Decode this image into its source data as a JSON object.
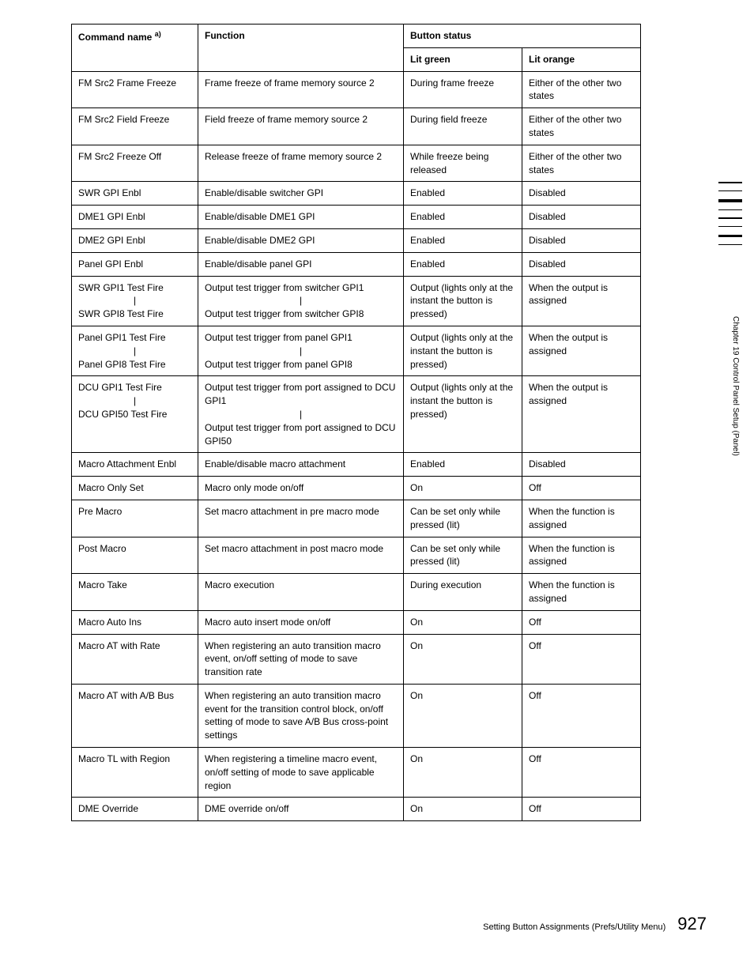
{
  "table": {
    "headers": {
      "command": "Command name",
      "command_sup": "a)",
      "function": "Function",
      "button_status": "Button status",
      "lit_green": "Lit green",
      "lit_orange": "Lit orange"
    },
    "rows": [
      {
        "cmd": "FM Src2 Frame Freeze",
        "func": "Frame freeze of frame memory source 2",
        "green": "During frame freeze",
        "orange": "Either of the other two states"
      },
      {
        "cmd": "FM Src2 Field Freeze",
        "func": "Field freeze of frame memory source 2",
        "green": "During field freeze",
        "orange": "Either of the other two states"
      },
      {
        "cmd": "FM Src2 Freeze Off",
        "func": "Release freeze of frame memory source 2",
        "green": "While freeze being released",
        "orange": "Either of the other two states"
      },
      {
        "cmd": "SWR GPI Enbl",
        "func": "Enable/disable switcher GPI",
        "green": "Enabled",
        "orange": "Disabled"
      },
      {
        "cmd": "DME1 GPI Enbl",
        "func": "Enable/disable DME1 GPI",
        "green": "Enabled",
        "orange": "Disabled"
      },
      {
        "cmd": "DME2 GPI Enbl",
        "func": "Enable/disable DME2 GPI",
        "green": "Enabled",
        "orange": "Disabled"
      },
      {
        "cmd": "Panel GPI Enbl",
        "func": "Enable/disable panel GPI",
        "green": "Enabled",
        "orange": "Disabled"
      },
      {
        "cmd": "SWR GPI1 Test Fire\n     |\nSWR GPI8 Test Fire",
        "func": "Output test trigger from switcher GPI1\n     |\nOutput test trigger from switcher GPI8",
        "green": "Output (lights only at the instant the button is pressed)",
        "orange": "When the output is assigned"
      },
      {
        "cmd": "Panel GPI1 Test Fire\n     |\nPanel GPI8 Test Fire",
        "func": "Output test trigger from panel GPI1\n     |\nOutput test trigger from panel GPI8",
        "green": "Output (lights only at the instant the button is pressed)",
        "orange": "When the output is assigned"
      },
      {
        "cmd": "DCU GPI1 Test Fire\n     |\nDCU GPI50 Test Fire",
        "func": "Output test trigger from port assigned to DCU GPI1\n     |\nOutput test trigger from port assigned to DCU GPI50",
        "green": "Output (lights only at the instant the button is pressed)",
        "orange": "When the output is assigned"
      },
      {
        "cmd": "Macro Attachment Enbl",
        "func": "Enable/disable macro attachment",
        "green": "Enabled",
        "orange": "Disabled"
      },
      {
        "cmd": "Macro Only Set",
        "func": "Macro only mode on/off",
        "green": "On",
        "orange": "Off"
      },
      {
        "cmd": "Pre Macro",
        "func": "Set macro attachment in pre macro mode",
        "green": "Can be set only while pressed (lit)",
        "orange": "When the function is assigned"
      },
      {
        "cmd": "Post Macro",
        "func": "Set macro attachment in post macro mode",
        "green": "Can be set only while pressed (lit)",
        "orange": "When the function is assigned"
      },
      {
        "cmd": "Macro Take",
        "func": "Macro execution",
        "green": "During execution",
        "orange": "When the function is assigned"
      },
      {
        "cmd": "Macro Auto Ins",
        "func": "Macro auto insert mode on/off",
        "green": "On",
        "orange": "Off"
      },
      {
        "cmd": "Macro AT with Rate",
        "func": "When registering an auto transition macro event, on/off setting of mode to save transition rate",
        "green": "On",
        "orange": "Off"
      },
      {
        "cmd": "Macro AT with A/B Bus",
        "func": "When registering an auto transition macro event for the transition control block, on/off setting of mode to save A/B Bus cross-point settings",
        "green": "On",
        "orange": "Off"
      },
      {
        "cmd": "Macro TL with Region",
        "func": "When registering a timeline macro event, on/off setting of mode to save applicable region",
        "green": "On",
        "orange": "Off"
      },
      {
        "cmd": "DME Override",
        "func": "DME override on/off",
        "green": "On",
        "orange": "Off"
      }
    ]
  },
  "sidebar": {
    "chapter": "Chapter 19   Control Panel Setup (Panel)"
  },
  "footer": {
    "text": "Setting Button Assignments (Prefs/Utility Menu)",
    "page": "927"
  }
}
